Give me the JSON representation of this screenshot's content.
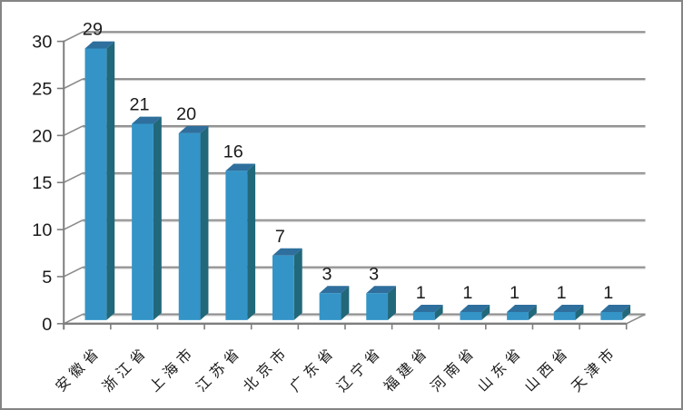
{
  "window": {
    "background": "#FFFFFF",
    "border_color": "#848484"
  },
  "chart_data": {
    "type": "bar",
    "style": "3d-clustered-column",
    "title": "",
    "xlabel": "",
    "ylabel": "",
    "categories": [
      "安徽省",
      "浙江省",
      "上海市",
      "江苏省",
      "北京市",
      "广东省",
      "辽宁省",
      "福建省",
      "河南省",
      "山东省",
      "山西省",
      "天津市"
    ],
    "values": [
      29,
      21,
      20,
      16,
      7,
      3,
      3,
      1,
      1,
      1,
      1,
      1
    ],
    "data_labels": [
      "29",
      "21",
      "20",
      "16",
      "7",
      "3",
      "3",
      "1",
      "1",
      "1",
      "1",
      "1"
    ],
    "yticks": [
      0,
      5,
      10,
      15,
      20,
      25,
      30
    ],
    "ytick_labels": [
      "0",
      "5",
      "10",
      "15",
      "20",
      "25",
      "30"
    ],
    "ylim": [
      0,
      30
    ],
    "grid": true,
    "legend": false,
    "data_labels_visible": true,
    "colors": {
      "bar_front": "#3494C7",
      "bar_top": "#2E6F9D",
      "bar_side": "#21687A",
      "gridline": "#8A8A8A",
      "gridline_highlight": "#C9C9C9",
      "axis": "#7D7D7D",
      "text": "#1A1A1A",
      "background": "#FFFFFF"
    }
  }
}
